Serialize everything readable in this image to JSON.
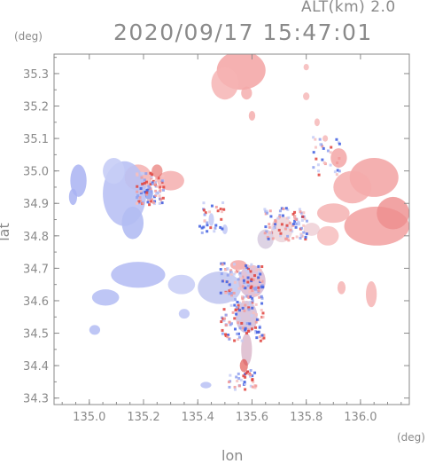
{
  "header": {
    "alt_label": "ALT(km) 2.0",
    "timestamp": "2020/09/17 15:47:01"
  },
  "axes": {
    "xlabel": "lon",
    "ylabel": "lat",
    "x_unit": "(deg)",
    "y_unit": "(deg)",
    "x_ticks": [
      "135.0",
      "135.2",
      "135.4",
      "135.6",
      "135.8",
      "136.0"
    ],
    "y_ticks": [
      "35.3",
      "35.2",
      "35.1",
      "35.0",
      "34.9",
      "34.8",
      "34.7",
      "34.6",
      "34.5",
      "34.4",
      "34.3"
    ]
  },
  "map_data": {
    "type": "heatmap",
    "xlim": [
      134.87,
      136.18
    ],
    "ylim": [
      34.28,
      35.36
    ],
    "colors": {
      "positive": "#f29a9a",
      "negative": "#a9b3f2",
      "strong_negative": "#3e5de0",
      "strong_positive": "#e0413b",
      "frame": "#8a8a8a"
    }
  }
}
